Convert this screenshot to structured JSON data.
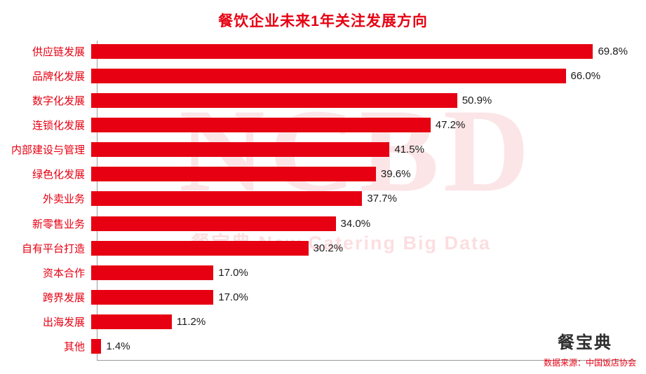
{
  "title": "餐饮企业未来1年关注发展方向",
  "watermark": {
    "big": "NCBD",
    "sub": "餐宝典  New Catering Big Data"
  },
  "footer": {
    "logo": "餐宝典",
    "source": "数据来源：中国饭店协会"
  },
  "colors": {
    "bar": "#e60012",
    "category_label": "#e60012",
    "value_label": "#1a1a1a",
    "axis": "#9a9a9a"
  },
  "chart_data": {
    "type": "bar",
    "orientation": "horizontal",
    "title": "餐饮企业未来1年关注发展方向",
    "categories": [
      "供应链发展",
      "品牌化发展",
      "数字化发展",
      "连锁化发展",
      "内部建设与管理",
      "绿色化发展",
      "外卖业务",
      "新零售业务",
      "自有平台打造",
      "资本合作",
      "跨界发展",
      "出海发展",
      "其他"
    ],
    "values": [
      69.8,
      66.0,
      50.9,
      47.2,
      41.5,
      39.6,
      37.7,
      34.0,
      30.2,
      17.0,
      17.0,
      11.2,
      1.4
    ],
    "value_labels": [
      "69.8%",
      "66.0%",
      "50.9%",
      "47.2%",
      "41.5%",
      "39.6%",
      "37.7%",
      "34.0%",
      "30.2%",
      "17.0%",
      "17.0%",
      "11.2%",
      "1.4%"
    ],
    "xlabel": "",
    "ylabel": "",
    "xlim": [
      0,
      76
    ],
    "grid": false,
    "legend": "none"
  }
}
